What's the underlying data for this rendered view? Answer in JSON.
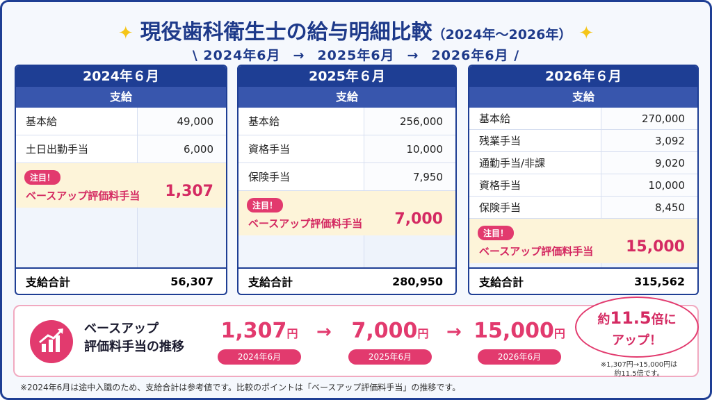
{
  "header": {
    "title": "現役歯科衛生士の給与明細比較",
    "title_suffix": "（2024年～2026年）",
    "timeline": [
      "2024年6月",
      "2025年6月",
      "2026年6月"
    ]
  },
  "cards": [
    {
      "month": "2024年６月",
      "section": "支給",
      "rows": [
        [
          "基本給",
          "49,000"
        ],
        [
          "土日出勤手当",
          "6,000"
        ]
      ],
      "highlight": {
        "badge": "注目！",
        "label": "ベースアップ評価料手当",
        "value": "1,307"
      },
      "total": {
        "label": "支給合計",
        "value": "56,307"
      }
    },
    {
      "month": "2025年６月",
      "section": "支給",
      "rows": [
        [
          "基本給",
          "256,000"
        ],
        [
          "資格手当",
          "10,000"
        ],
        [
          "保険手当",
          "7,950"
        ]
      ],
      "highlight": {
        "badge": "注目！",
        "label": "ベースアップ評価料手当",
        "value": "7,000"
      },
      "total": {
        "label": "支給合計",
        "value": "280,950"
      }
    },
    {
      "month": "2026年６月",
      "section": "支給",
      "rows": [
        [
          "基本給",
          "270,000"
        ],
        [
          "残業手当",
          "3,092"
        ],
        [
          "通勤手当/非課",
          "9,020"
        ],
        [
          "資格手当",
          "10,000"
        ],
        [
          "保険手当",
          "8,450"
        ]
      ],
      "highlight": {
        "badge": "注目！",
        "label": "ベースアップ評価料手当",
        "value": "15,000"
      },
      "total": {
        "label": "支給合計",
        "value": "315,562"
      }
    }
  ],
  "summary": {
    "title": [
      "ベースアップ",
      "評価料手当の推移"
    ],
    "unit": "円",
    "steps": [
      {
        "amount": "1,307",
        "date": "2024年6月"
      },
      {
        "amount": "7,000",
        "date": "2025年6月"
      },
      {
        "amount": "15,000",
        "date": "2026年6月"
      }
    ],
    "bubble": {
      "prefix": "約",
      "ratio": "11.5",
      "suffix": "倍に",
      "line2": "アップ！"
    },
    "note": [
      "※1,307円→15,000円は",
      "約11.5倍です。"
    ]
  },
  "footnote": "※2024年6月は途中入職のため、支給合計は参考値です。比較のポイントは「ベースアップ評価料手当」の推移です。"
}
